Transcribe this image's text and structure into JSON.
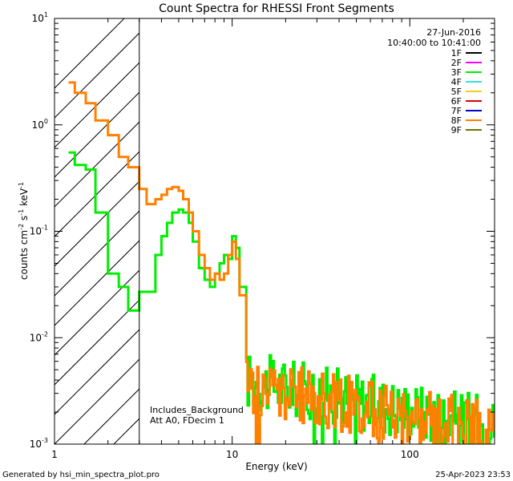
{
  "chart_data": {
    "type": "line",
    "title": "Count Spectra for RHESSI Front Segments",
    "xlabel": "Energy (keV)",
    "ylabel_main": "counts cm",
    "ylabel_unit": "keV",
    "ylabel_sup1": "-2",
    "ylabel_mid": "s",
    "ylabel_sup2": "-1",
    "ylabel_sup3": "-1",
    "x_scale": "log",
    "y_scale": "log",
    "xlim": [
      1,
      300
    ],
    "ylim": [
      0.001,
      10
    ],
    "x_ticks": [
      {
        "value": 1,
        "label": "1"
      },
      {
        "value": 10,
        "label": "10"
      },
      {
        "value": 100,
        "label": "100"
      }
    ],
    "y_ticks": [
      {
        "value": 10,
        "base": "10",
        "exp": "1"
      },
      {
        "value": 1,
        "base": "10",
        "exp": "0"
      },
      {
        "value": 0.1,
        "base": "10",
        "exp": "-1"
      },
      {
        "value": 0.01,
        "base": "10",
        "exp": "-2"
      },
      {
        "value": 0.001,
        "base": "10",
        "exp": "-3"
      }
    ],
    "date": "27-Jun-2016",
    "time_range": "10:40:00 to 10:41:00",
    "legend": [
      {
        "name": "1F",
        "color": "#000000"
      },
      {
        "name": "2F",
        "color": "#ff00ff"
      },
      {
        "name": "3F",
        "color": "#00ee00"
      },
      {
        "name": "4F",
        "color": "#33e0e0"
      },
      {
        "name": "5F",
        "color": "#f2cc22"
      },
      {
        "name": "6F",
        "color": "#dd0000"
      },
      {
        "name": "7F",
        "color": "#0000cc"
      },
      {
        "name": "8F",
        "color": "#ff8000"
      },
      {
        "name": "9F",
        "color": "#707000"
      }
    ],
    "legend_position": "top-right",
    "hatched_region_max_keV": 3,
    "annotations": [
      "Includes_Background",
      "Att A0, FDecim 1"
    ],
    "series": [
      {
        "name": "3F",
        "color": "#00ee00",
        "edges": [
          1.2,
          1.3,
          1.5,
          1.7,
          2.0,
          2.3,
          2.6,
          3.0,
          3.3,
          3.7,
          4.0,
          4.3,
          4.6,
          5.0,
          5.3,
          5.7,
          6.0,
          6.5,
          7.0,
          7.5,
          8.0,
          8.5,
          9.0,
          9.5,
          10.0,
          10.5,
          11.0,
          12.0
        ],
        "values": [
          0.55,
          0.42,
          0.38,
          0.15,
          0.04,
          0.03,
          0.018,
          0.027,
          0.027,
          0.06,
          0.09,
          0.12,
          0.15,
          0.16,
          0.15,
          0.12,
          0.08,
          0.045,
          0.035,
          0.03,
          0.04,
          0.05,
          0.06,
          0.055,
          0.09,
          0.07,
          0.03
        ],
        "noise_from_keV": 12,
        "noise_to_keV": 300,
        "noise_level_at_12": 0.004,
        "noise_level_at_300": 0.0015
      },
      {
        "name": "8F",
        "color": "#ff8000",
        "edges": [
          1.2,
          1.3,
          1.5,
          1.7,
          2.0,
          2.3,
          2.6,
          3.0,
          3.3,
          3.7,
          4.0,
          4.3,
          4.6,
          5.0,
          5.3,
          5.7,
          6.0,
          6.5,
          7.0,
          7.5,
          8.0,
          8.5,
          9.0,
          9.5,
          10.0,
          10.5,
          11.0,
          12.0
        ],
        "values": [
          2.5,
          2.0,
          1.6,
          1.1,
          0.8,
          0.5,
          0.4,
          0.25,
          0.18,
          0.2,
          0.22,
          0.25,
          0.26,
          0.24,
          0.2,
          0.15,
          0.1,
          0.06,
          0.045,
          0.035,
          0.04,
          0.035,
          0.04,
          0.06,
          0.08,
          0.055,
          0.025
        ],
        "noise_from_keV": 12,
        "noise_to_keV": 300,
        "noise_level_at_12": 0.0035,
        "noise_level_at_300": 0.0013
      }
    ]
  },
  "footer": {
    "left": "Generated by hsi_min_spectra_plot.pro",
    "right": "25-Apr-2023 23:53"
  }
}
